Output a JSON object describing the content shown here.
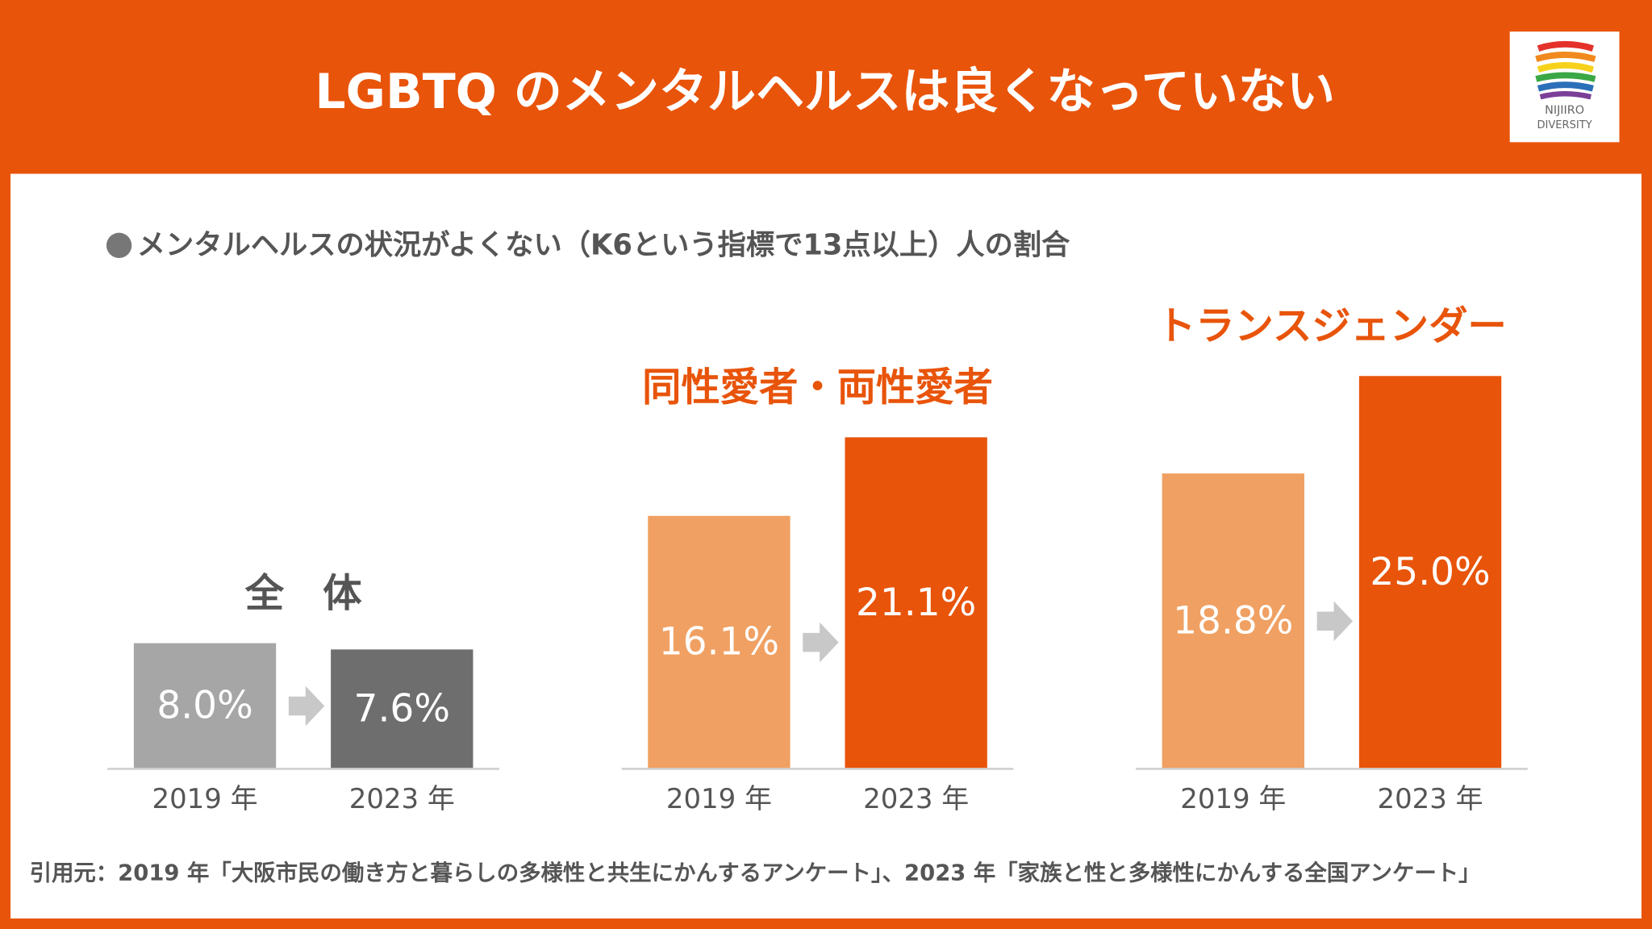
{
  "header": {
    "title": "LGBTQ のメンタルヘルスは良くなっていない"
  },
  "logo": {
    "line1": "NIJIIRO",
    "line2": "DIVERSITY"
  },
  "subtitle": "メンタルヘルスの状況がよくない（K6という指標で13点以上）人の割合",
  "chart_data": [
    {
      "type": "bar",
      "title": "全　体",
      "title_color": "#555555",
      "categories": [
        "2019 年",
        "2023 年"
      ],
      "values": [
        8.0,
        7.6
      ],
      "value_labels": [
        "8.0%",
        "7.6%"
      ],
      "colors": [
        "#a6a6a6",
        "#6e6e6e"
      ]
    },
    {
      "type": "bar",
      "title": "同性愛者・両性愛者",
      "title_color": "#e8540a",
      "categories": [
        "2019 年",
        "2023 年"
      ],
      "values": [
        16.1,
        21.1
      ],
      "value_labels": [
        "16.1%",
        "21.1%"
      ],
      "colors": [
        "#f0a062",
        "#e8540a"
      ]
    },
    {
      "type": "bar",
      "title": "トランスジェンダー",
      "title_color": "#e8540a",
      "categories": [
        "2019 年",
        "2023 年"
      ],
      "values": [
        18.8,
        25.0
      ],
      "value_labels": [
        "18.8%",
        "25.0%"
      ],
      "colors": [
        "#f0a062",
        "#e8540a"
      ]
    }
  ],
  "source": "引用元：2019 年「大阪市民の働き方と暮らしの多様性と共生にかんするアンケート」、2023 年「家族と性と多様性にかんする全国アンケート」"
}
